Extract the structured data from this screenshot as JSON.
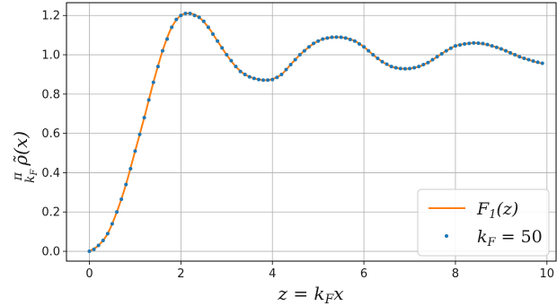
{
  "chart_data": {
    "type": "line",
    "xlabel": "z = k_F x",
    "ylabel": "(π/k_F) ρ̃(x)",
    "xlim": [
      -0.5,
      10.2
    ],
    "ylim": [
      -0.05,
      1.265
    ],
    "xticks": [
      0,
      2,
      4,
      6,
      8,
      10
    ],
    "xtick_labels": [
      "0",
      "2",
      "4",
      "6",
      "8",
      "10"
    ],
    "yticks": [
      0.0,
      0.2,
      0.4,
      0.6,
      0.8,
      1.0,
      1.2
    ],
    "ytick_labels": [
      "0.0",
      "0.2",
      "0.4",
      "0.6",
      "0.8",
      "1.0",
      "1.2"
    ],
    "grid": true,
    "legend_position": "lower-right",
    "series": [
      {
        "name": "F_1(z)",
        "style": "line",
        "color": "#ff7f0e",
        "x": [
          0,
          0.2,
          0.4,
          0.6,
          0.8,
          1.0,
          1.2,
          1.4,
          1.6,
          1.8,
          2.0,
          2.2,
          2.4,
          2.6,
          2.8,
          3.0,
          3.2,
          3.4,
          3.6,
          3.8,
          3.9,
          4.0,
          4.2,
          4.4,
          4.6,
          4.8,
          5.0,
          5.2,
          5.4,
          5.5,
          5.6,
          5.8,
          6.0,
          6.2,
          6.4,
          6.6,
          6.8,
          7.0,
          7.2,
          7.4,
          7.6,
          7.8,
          8.0,
          8.2,
          8.4,
          8.6,
          8.8,
          9.0,
          9.2,
          9.4,
          9.6,
          9.8,
          9.9
        ],
        "y": [
          0.0,
          0.03,
          0.09,
          0.2,
          0.34,
          0.51,
          0.68,
          0.86,
          1.02,
          1.14,
          1.2,
          1.21,
          1.19,
          1.14,
          1.07,
          1.0,
          0.94,
          0.9,
          0.88,
          0.871,
          0.872,
          0.876,
          0.9,
          0.95,
          1.0,
          1.04,
          1.07,
          1.085,
          1.09,
          1.088,
          1.085,
          1.07,
          1.04,
          1.0,
          0.965,
          0.94,
          0.93,
          0.93,
          0.94,
          0.96,
          0.99,
          1.02,
          1.045,
          1.055,
          1.06,
          1.055,
          1.045,
          1.03,
          1.01,
          0.99,
          0.975,
          0.96,
          0.957
        ]
      },
      {
        "name": "k_F = 50",
        "style": "markers",
        "color": "#1f77b4",
        "x": [
          0.0,
          0.1,
          0.2,
          0.3,
          0.4,
          0.5,
          0.6,
          0.7,
          0.8,
          0.9,
          1.0,
          1.1,
          1.2,
          1.3,
          1.4,
          1.5,
          1.6,
          1.7,
          1.8,
          1.9,
          2.0,
          2.1,
          2.2,
          2.3,
          2.4,
          2.5,
          2.6,
          2.7,
          2.8,
          2.9,
          3.0,
          3.1,
          3.2,
          3.3,
          3.4,
          3.5,
          3.6,
          3.7,
          3.8,
          3.9,
          4.0,
          4.1,
          4.2,
          4.3,
          4.4,
          4.5,
          4.6,
          4.7,
          4.8,
          4.9,
          5.0,
          5.1,
          5.2,
          5.3,
          5.4,
          5.5,
          5.6,
          5.7,
          5.8,
          5.9,
          6.0,
          6.1,
          6.2,
          6.3,
          6.4,
          6.5,
          6.6,
          6.7,
          6.8,
          6.9,
          7.0,
          7.1,
          7.2,
          7.3,
          7.4,
          7.5,
          7.6,
          7.7,
          7.8,
          7.9,
          8.0,
          8.1,
          8.2,
          8.3,
          8.4,
          8.5,
          8.6,
          8.7,
          8.8,
          8.9,
          9.0,
          9.1,
          9.2,
          9.3,
          9.4,
          9.5,
          9.6,
          9.7,
          9.8,
          9.9
        ],
        "y": [
          0.0,
          0.01,
          0.03,
          0.055,
          0.09,
          0.14,
          0.2,
          0.265,
          0.34,
          0.42,
          0.51,
          0.595,
          0.68,
          0.77,
          0.86,
          0.94,
          1.02,
          1.08,
          1.14,
          1.18,
          1.2,
          1.21,
          1.21,
          1.2,
          1.19,
          1.17,
          1.14,
          1.105,
          1.07,
          1.035,
          1.0,
          0.97,
          0.94,
          0.915,
          0.9,
          0.888,
          0.88,
          0.874,
          0.871,
          0.871,
          0.874,
          0.885,
          0.9,
          0.925,
          0.95,
          0.975,
          1.0,
          1.02,
          1.04,
          1.058,
          1.07,
          1.08,
          1.085,
          1.089,
          1.09,
          1.089,
          1.085,
          1.078,
          1.07,
          1.055,
          1.04,
          1.02,
          1.0,
          0.982,
          0.965,
          0.952,
          0.94,
          0.934,
          0.93,
          0.929,
          0.93,
          0.934,
          0.94,
          0.95,
          0.96,
          0.975,
          0.99,
          1.005,
          1.02,
          1.033,
          1.045,
          1.05,
          1.055,
          1.058,
          1.06,
          1.059,
          1.057,
          1.052,
          1.045,
          1.038,
          1.03,
          1.02,
          1.01,
          1.0,
          0.99,
          0.982,
          0.975,
          0.968,
          0.962,
          0.957
        ]
      }
    ]
  }
}
